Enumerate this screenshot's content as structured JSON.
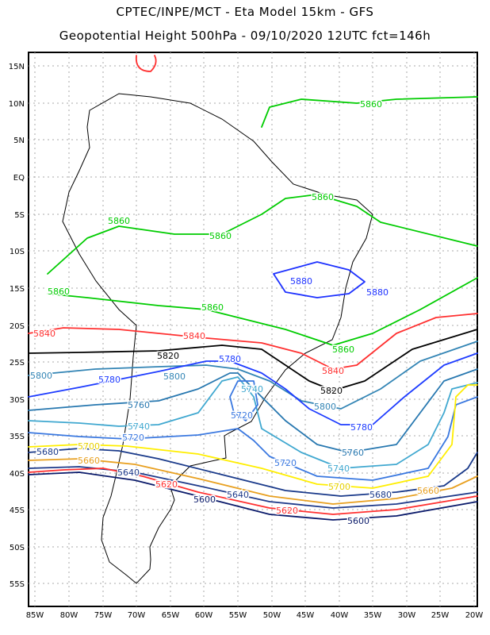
{
  "header": {
    "line1": "CPTEC/INPE/MCT -  Eta Model 15km - GFS",
    "line2": "Geopotential Height 500hPa - 09/10/2020 12UTC fct=146h"
  },
  "lat_ticks": [
    "15N",
    "10N",
    "5N",
    "EQ",
    "5S",
    "10S",
    "15S",
    "20S",
    "25S",
    "30S",
    "35S",
    "40S",
    "45S",
    "50S",
    "55S"
  ],
  "lon_ticks": [
    "85W",
    "80W",
    "75W",
    "70W",
    "65W",
    "60W",
    "55W",
    "50W",
    "45W",
    "40W",
    "35W",
    "30W",
    "25W",
    "20W"
  ],
  "levels": [
    "5600",
    "5620",
    "5640",
    "5660",
    "5680",
    "5700",
    "5720",
    "5740",
    "5760",
    "5780",
    "5800",
    "5820",
    "5840",
    "5860",
    "5880"
  ],
  "colors": {
    "c5860": "#00cc00",
    "c5880": "#1e32ff",
    "c5840": "#ff3030",
    "c5820": "#000000",
    "c5800": "#3385b5",
    "c5780": "#1e3cff",
    "c5760": "#2878b0",
    "c5740": "#40a8d0",
    "c5720": "#3a78e0",
    "c5700": "#ffee00",
    "c5680": "#1a3a8a",
    "c5660": "#e8a020",
    "c5640": "#1e3a8a",
    "c5620": "#ff3030",
    "c5600": "#0a1a6a"
  }
}
